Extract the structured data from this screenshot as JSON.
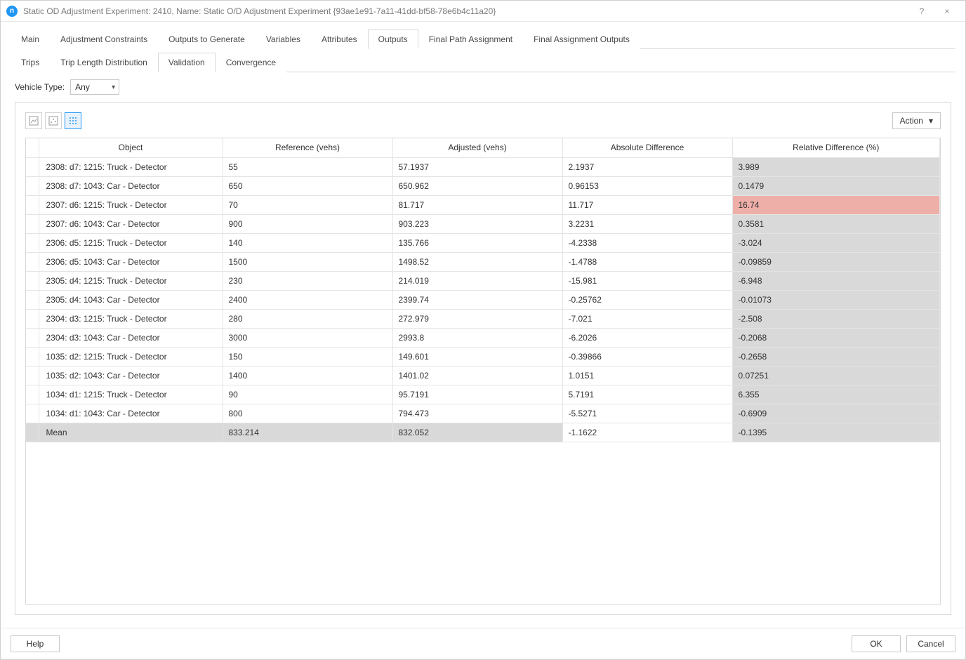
{
  "window": {
    "title": "Static OD Adjustment Experiment: 2410, Name: Static O/D Adjustment Experiment  {93ae1e91-7a11-41dd-bf58-78e6b4c11a20}",
    "help_symbol": "?",
    "close_symbol": "×"
  },
  "tabs_top": [
    {
      "label": "Main",
      "active": false
    },
    {
      "label": "Adjustment Constraints",
      "active": false
    },
    {
      "label": "Outputs to Generate",
      "active": false
    },
    {
      "label": "Variables",
      "active": false
    },
    {
      "label": "Attributes",
      "active": false
    },
    {
      "label": "Outputs",
      "active": true
    },
    {
      "label": "Final Path Assignment",
      "active": false
    },
    {
      "label": "Final Assignment Outputs",
      "active": false
    }
  ],
  "tabs_sub": [
    {
      "label": "Trips",
      "active": false
    },
    {
      "label": "Trip Length Distribution",
      "active": false
    },
    {
      "label": "Validation",
      "active": true
    },
    {
      "label": "Convergence",
      "active": false
    }
  ],
  "vehicle_type": {
    "label": "Vehicle Type:",
    "value": "Any"
  },
  "action_label": "Action",
  "columns": [
    "Object",
    "Reference (vehs)",
    "Adjusted (vehs)",
    "Absolute Difference",
    "Relative Difference (%)"
  ],
  "rows": [
    {
      "object": "2308: d7: 1215: Truck - Detector",
      "ref": "55",
      "adj": "57.1937",
      "abs": "2.1937",
      "rel": "3.989",
      "hl": false
    },
    {
      "object": "2308: d7: 1043: Car - Detector",
      "ref": "650",
      "adj": "650.962",
      "abs": "0.96153",
      "rel": "0.1479",
      "hl": false
    },
    {
      "object": "2307: d6: 1215: Truck - Detector",
      "ref": "70",
      "adj": "81.717",
      "abs": "11.717",
      "rel": "16.74",
      "hl": true
    },
    {
      "object": "2307: d6: 1043: Car - Detector",
      "ref": "900",
      "adj": "903.223",
      "abs": "3.2231",
      "rel": "0.3581",
      "hl": false
    },
    {
      "object": "2306: d5: 1215: Truck - Detector",
      "ref": "140",
      "adj": "135.766",
      "abs": "-4.2338",
      "rel": "-3.024",
      "hl": false
    },
    {
      "object": "2306: d5: 1043: Car - Detector",
      "ref": "1500",
      "adj": "1498.52",
      "abs": "-1.4788",
      "rel": "-0.09859",
      "hl": false
    },
    {
      "object": "2305: d4: 1215: Truck - Detector",
      "ref": "230",
      "adj": "214.019",
      "abs": "-15.981",
      "rel": "-6.948",
      "hl": false
    },
    {
      "object": "2305: d4: 1043: Car - Detector",
      "ref": "2400",
      "adj": "2399.74",
      "abs": "-0.25762",
      "rel": "-0.01073",
      "hl": false
    },
    {
      "object": "2304: d3: 1215: Truck - Detector",
      "ref": "280",
      "adj": "272.979",
      "abs": "-7.021",
      "rel": "-2.508",
      "hl": false
    },
    {
      "object": "2304: d3: 1043: Car - Detector",
      "ref": "3000",
      "adj": "2993.8",
      "abs": "-6.2026",
      "rel": "-0.2068",
      "hl": false
    },
    {
      "object": "1035: d2: 1215: Truck - Detector",
      "ref": "150",
      "adj": "149.601",
      "abs": "-0.39866",
      "rel": "-0.2658",
      "hl": false
    },
    {
      "object": "1035: d2: 1043: Car - Detector",
      "ref": "1400",
      "adj": "1401.02",
      "abs": "1.0151",
      "rel": "0.07251",
      "hl": false
    },
    {
      "object": "1034: d1: 1215: Truck - Detector",
      "ref": "90",
      "adj": "95.7191",
      "abs": "5.7191",
      "rel": "6.355",
      "hl": false
    },
    {
      "object": "1034: d1: 1043: Car - Detector",
      "ref": "800",
      "adj": "794.473",
      "abs": "-5.5271",
      "rel": "-0.6909",
      "hl": false
    }
  ],
  "mean_row": {
    "object": "Mean",
    "ref": "833.214",
    "adj": "832.052",
    "abs": "-1.1622",
    "rel": "-0.1395"
  },
  "buttons": {
    "help": "Help",
    "ok": "OK",
    "cancel": "Cancel"
  },
  "colors": {
    "rel_bg": "#d9d9d9",
    "highlight_bg": "#efafa9",
    "accent": "#2196f3"
  }
}
